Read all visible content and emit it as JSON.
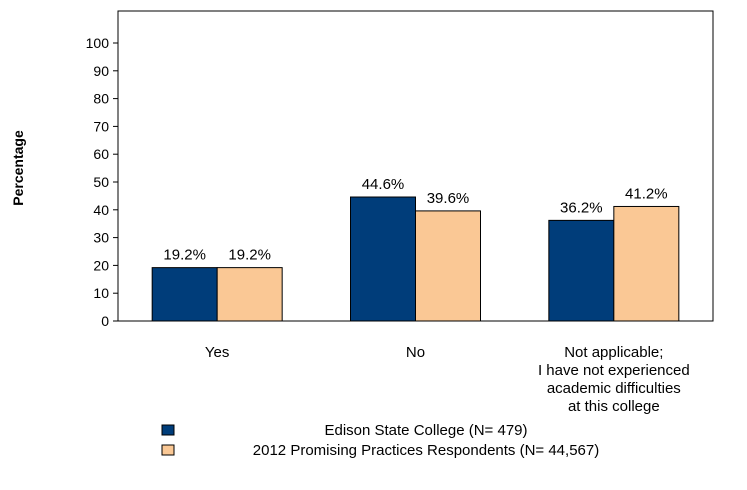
{
  "chart_data": {
    "type": "bar",
    "ylabel": "Percentage",
    "ylim": [
      0,
      100
    ],
    "yticks": [
      0,
      10,
      20,
      30,
      40,
      50,
      60,
      70,
      80,
      90,
      100
    ],
    "categories": [
      [
        "Yes"
      ],
      [
        "No"
      ],
      [
        "Not applicable;",
        "I have not experienced",
        "academic difficulties",
        "at this college"
      ]
    ],
    "series": [
      {
        "name": "Edison State College (N= 479)",
        "color": "#003d7a",
        "values": [
          19.2,
          44.6,
          36.2
        ],
        "labels": [
          "19.2%",
          "44.6%",
          "36.2%"
        ]
      },
      {
        "name": "2012 Promising Practices Respondents (N= 44,567)",
        "color": "#fac895",
        "values": [
          19.2,
          39.6,
          41.2
        ],
        "labels": [
          "19.2%",
          "39.6%",
          "41.2%"
        ]
      }
    ],
    "grid": false,
    "legend_position": "bottom"
  }
}
